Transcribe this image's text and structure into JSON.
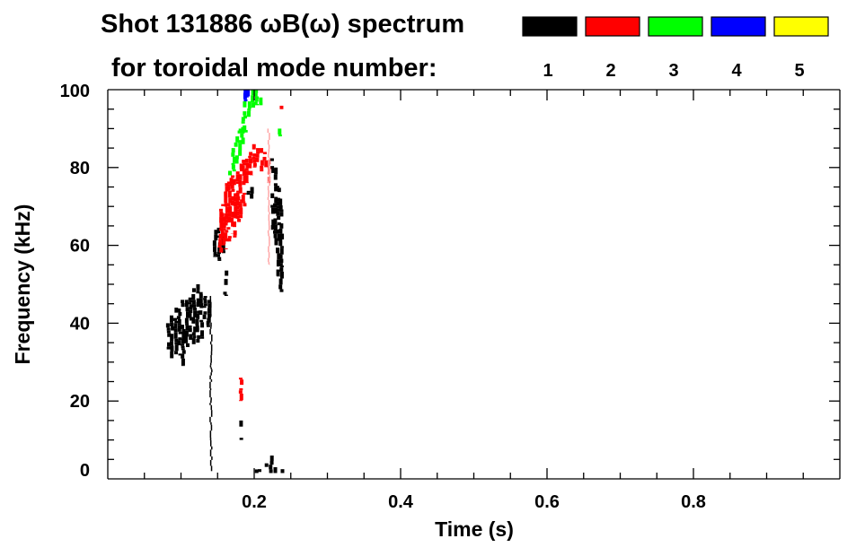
{
  "chart_data": {
    "type": "heatmap",
    "title": "Shot 131886 ωB(ω) spectrum",
    "subtitle": "for toroidal mode number:",
    "xlabel": "Time (s)",
    "ylabel": "Frequency (kHz)",
    "xlim": [
      0,
      1.0
    ],
    "ylim": [
      0,
      100
    ],
    "xticks": [
      0.2,
      0.4,
      0.6,
      0.8
    ],
    "xtick_labels": [
      "0.2",
      "0.4",
      "0.6",
      "0.8"
    ],
    "yticks": [
      0,
      20,
      40,
      60,
      80,
      100
    ],
    "ytick_labels": [
      "0",
      "20",
      "40",
      "60",
      "80",
      "100"
    ],
    "x_minor_step": 0.05,
    "y_minor_step": 5,
    "grid": false,
    "legend_position": "top-right",
    "legend": [
      {
        "label": "1",
        "color": "#000000"
      },
      {
        "label": "2",
        "color": "#ff0000"
      },
      {
        "label": "3",
        "color": "#00ff00"
      },
      {
        "label": "4",
        "color": "#0000ff"
      },
      {
        "label": "5",
        "color": "#ffff00"
      }
    ],
    "series": [
      {
        "name": "1",
        "color": "#000000",
        "columns": [
          [
            0.083,
            33,
            40
          ],
          [
            0.088,
            31,
            42
          ],
          [
            0.093,
            32,
            44
          ],
          [
            0.098,
            30,
            45
          ],
          [
            0.103,
            29,
            46
          ],
          [
            0.108,
            33,
            46
          ],
          [
            0.113,
            35,
            48
          ],
          [
            0.118,
            34,
            49
          ],
          [
            0.123,
            35,
            50
          ],
          [
            0.128,
            36,
            48
          ],
          [
            0.133,
            38,
            47
          ],
          [
            0.138,
            39,
            46
          ],
          [
            0.141,
            2,
            47
          ],
          [
            0.147,
            57,
            64
          ],
          [
            0.152,
            56,
            66
          ],
          [
            0.157,
            58,
            63
          ],
          [
            0.161,
            47,
            54
          ],
          [
            0.182,
            10,
            15
          ],
          [
            0.192,
            73,
            74
          ],
          [
            0.197,
            72,
            75
          ],
          [
            0.225,
            64,
            83
          ],
          [
            0.229,
            60,
            80
          ],
          [
            0.233,
            52,
            76
          ],
          [
            0.237,
            48,
            72
          ],
          [
            0.203,
            1.5,
            3
          ],
          [
            0.208,
            1.5,
            2.5
          ],
          [
            0.213,
            1.5,
            3
          ],
          [
            0.218,
            1.5,
            4
          ],
          [
            0.223,
            1.5,
            6
          ],
          [
            0.228,
            1.5,
            3
          ],
          [
            0.238,
            1.5,
            3
          ]
        ]
      },
      {
        "name": "2",
        "color": "#ff0000",
        "columns": [
          [
            0.154,
            58,
            70
          ],
          [
            0.158,
            60,
            73
          ],
          [
            0.162,
            59,
            76
          ],
          [
            0.166,
            61,
            77
          ],
          [
            0.17,
            63,
            78
          ],
          [
            0.174,
            62,
            80
          ],
          [
            0.178,
            66,
            79
          ],
          [
            0.182,
            67,
            81
          ],
          [
            0.186,
            70,
            82
          ],
          [
            0.182,
            20,
            26
          ],
          [
            0.19,
            76,
            83
          ],
          [
            0.195,
            78,
            84
          ],
          [
            0.2,
            80,
            86
          ],
          [
            0.205,
            80,
            85
          ],
          [
            0.21,
            79,
            85
          ],
          [
            0.215,
            79,
            84
          ],
          [
            0.22,
            76,
            82
          ],
          [
            0.22,
            55,
            90
          ],
          [
            0.238,
            95,
            97
          ]
        ]
      },
      {
        "name": "3",
        "color": "#00ff00",
        "columns": [
          [
            0.168,
            78,
            82
          ],
          [
            0.172,
            79,
            85
          ],
          [
            0.176,
            81,
            88
          ],
          [
            0.18,
            83,
            90
          ],
          [
            0.184,
            86,
            93
          ],
          [
            0.188,
            89,
            97
          ],
          [
            0.193,
            93,
            97
          ],
          [
            0.198,
            95,
            100
          ],
          [
            0.203,
            96,
            100
          ],
          [
            0.208,
            96,
            98
          ],
          [
            0.235,
            88,
            90
          ]
        ]
      },
      {
        "name": "4",
        "color": "#0000ff",
        "columns": [
          [
            0.188,
            97,
            100
          ],
          [
            0.191,
            98,
            100
          ]
        ]
      },
      {
        "name": "5",
        "color": "#ffff00",
        "columns": []
      }
    ]
  }
}
